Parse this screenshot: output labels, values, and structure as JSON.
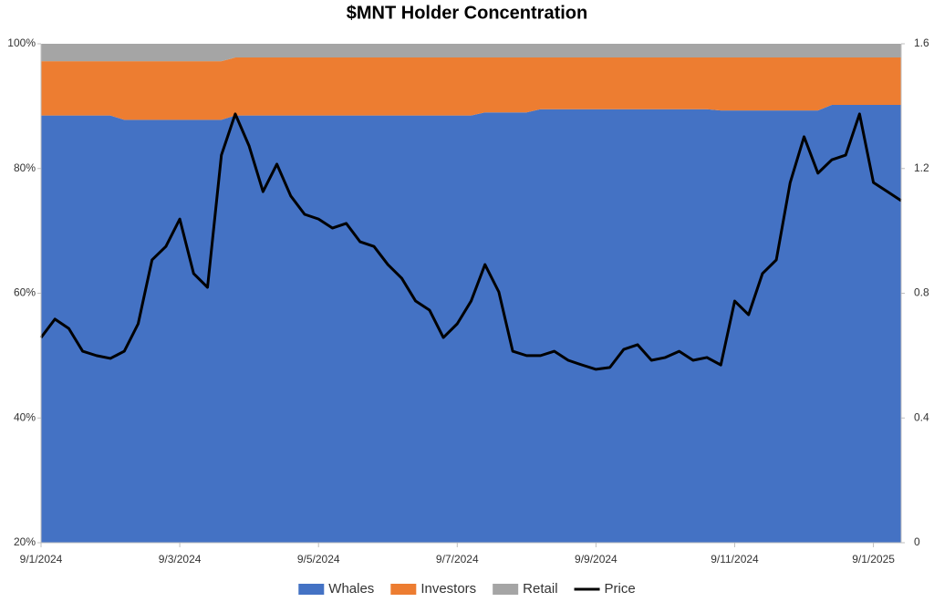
{
  "chart_data": {
    "type": "area",
    "title": "$MNT Holder Concentration",
    "stacked": true,
    "categories": [
      "9/1/2024",
      null,
      null,
      null,
      null,
      null,
      null,
      null,
      null,
      null,
      "9/3/2024",
      null,
      null,
      null,
      null,
      null,
      null,
      null,
      null,
      null,
      "9/5/2024",
      null,
      null,
      null,
      null,
      null,
      null,
      null,
      null,
      null,
      "9/7/2024",
      null,
      null,
      null,
      null,
      null,
      null,
      null,
      null,
      null,
      "9/9/2024",
      null,
      null,
      null,
      null,
      null,
      null,
      null,
      null,
      null,
      "9/11/2024",
      null,
      null,
      null,
      null,
      null,
      null,
      null,
      null,
      null,
      "9/1/2025",
      null,
      null
    ],
    "series": [
      {
        "name": "Whales",
        "type": "area",
        "color": "#4472c4",
        "values": [
          88.5,
          88.5,
          88.5,
          88.5,
          88.5,
          88.5,
          87.8,
          87.8,
          87.8,
          87.8,
          87.8,
          87.8,
          87.8,
          87.8,
          88.5,
          88.5,
          88.5,
          88.5,
          88.5,
          88.5,
          88.5,
          88.5,
          88.5,
          88.5,
          88.5,
          88.5,
          88.5,
          88.5,
          88.5,
          88.5,
          88.5,
          88.5,
          89.0,
          89.0,
          89.0,
          89.0,
          89.5,
          89.5,
          89.5,
          89.5,
          89.5,
          89.5,
          89.5,
          89.5,
          89.5,
          89.5,
          89.5,
          89.5,
          89.5,
          89.3,
          89.3,
          89.3,
          89.3,
          89.3,
          89.3,
          89.3,
          89.3,
          90.2,
          90.2,
          90.2,
          90.2,
          90.2,
          90.2
        ]
      },
      {
        "name": "Investors",
        "type": "area",
        "color": "#ed7d31",
        "values": [
          8.7,
          8.7,
          8.7,
          8.7,
          8.7,
          8.7,
          9.4,
          9.4,
          9.4,
          9.4,
          9.4,
          9.4,
          9.4,
          9.4,
          9.3,
          9.3,
          9.3,
          9.3,
          9.3,
          9.3,
          9.3,
          9.3,
          9.3,
          9.3,
          9.3,
          9.3,
          9.3,
          9.3,
          9.3,
          9.3,
          9.3,
          9.3,
          8.8,
          8.8,
          8.8,
          8.8,
          8.3,
          8.3,
          8.3,
          8.3,
          8.3,
          8.3,
          8.3,
          8.3,
          8.3,
          8.3,
          8.3,
          8.3,
          8.3,
          8.5,
          8.5,
          8.5,
          8.5,
          8.5,
          8.5,
          8.5,
          8.5,
          7.6,
          7.6,
          7.6,
          7.6,
          7.6,
          7.6
        ]
      },
      {
        "name": "Retail",
        "type": "area",
        "color": "#a5a5a5",
        "values": [
          2.8,
          2.8,
          2.8,
          2.8,
          2.8,
          2.8,
          2.8,
          2.8,
          2.8,
          2.8,
          2.8,
          2.8,
          2.8,
          2.8,
          2.2,
          2.2,
          2.2,
          2.2,
          2.2,
          2.2,
          2.2,
          2.2,
          2.2,
          2.2,
          2.2,
          2.2,
          2.2,
          2.2,
          2.2,
          2.2,
          2.2,
          2.2,
          2.2,
          2.2,
          2.2,
          2.2,
          2.2,
          2.2,
          2.2,
          2.2,
          2.2,
          2.2,
          2.2,
          2.2,
          2.2,
          2.2,
          2.2,
          2.2,
          2.2,
          2.2,
          2.2,
          2.2,
          2.2,
          2.2,
          2.2,
          2.2,
          2.2,
          2.2,
          2.2,
          2.2,
          2.2,
          2.2,
          2.2
        ]
      },
      {
        "name": "Price",
        "type": "line",
        "axis": "y2",
        "color": "#000000",
        "values": [
          0.658,
          0.717,
          0.687,
          0.614,
          0.6,
          0.591,
          0.614,
          0.702,
          0.907,
          0.95,
          1.038,
          0.863,
          0.819,
          1.243,
          1.375,
          1.272,
          1.126,
          1.214,
          1.112,
          1.053,
          1.038,
          1.009,
          1.024,
          0.965,
          0.95,
          0.892,
          0.848,
          0.775,
          0.746,
          0.658,
          0.702,
          0.775,
          0.892,
          0.804,
          0.614,
          0.6,
          0.6,
          0.614,
          0.585,
          0.57,
          0.556,
          0.562,
          0.62,
          0.635,
          0.585,
          0.594,
          0.614,
          0.585,
          0.594,
          0.57,
          0.775,
          0.731,
          0.863,
          0.907,
          1.155,
          1.302,
          1.185,
          1.228,
          1.243,
          1.375,
          1.155,
          1.126,
          1.097
        ]
      }
    ],
    "ylim": [
      20,
      100
    ],
    "yticks": [
      {
        "value": 20,
        "label": "20%"
      },
      {
        "value": 40,
        "label": "40%"
      },
      {
        "value": 60,
        "label": "60%"
      },
      {
        "value": 80,
        "label": "80%"
      },
      {
        "value": 100,
        "label": "100%"
      }
    ],
    "y2lim": [
      0,
      1.6
    ],
    "y2ticks": [
      0,
      0.4,
      0.8,
      1.2,
      1.6
    ],
    "legend": "bottom"
  }
}
